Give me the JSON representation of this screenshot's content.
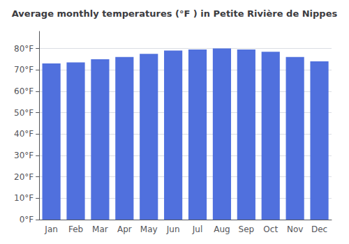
{
  "chart_data": {
    "type": "bar",
    "title": "Average monthly temperatures (°F ) in Petite Rivière de Nippes",
    "categories": [
      "Jan",
      "Feb",
      "Mar",
      "Apr",
      "May",
      "Jun",
      "Jul",
      "Aug",
      "Sep",
      "Oct",
      "Nov",
      "Dec"
    ],
    "values": [
      73.0,
      73.5,
      75.0,
      76.0,
      77.5,
      79.0,
      79.5,
      80.0,
      79.5,
      78.5,
      76.0,
      74.0
    ],
    "ylim": [
      0,
      88
    ],
    "yticks": [
      {
        "value": 0,
        "label": "0°F"
      },
      {
        "value": 10,
        "label": "10°F"
      },
      {
        "value": 20,
        "label": "20°F"
      },
      {
        "value": 30,
        "label": "30°F"
      },
      {
        "value": 40,
        "label": "40°F"
      },
      {
        "value": 50,
        "label": "50°F"
      },
      {
        "value": 60,
        "label": "60°F"
      },
      {
        "value": 70,
        "label": "70°F"
      },
      {
        "value": 80,
        "label": "80°F"
      }
    ],
    "grid": true
  }
}
